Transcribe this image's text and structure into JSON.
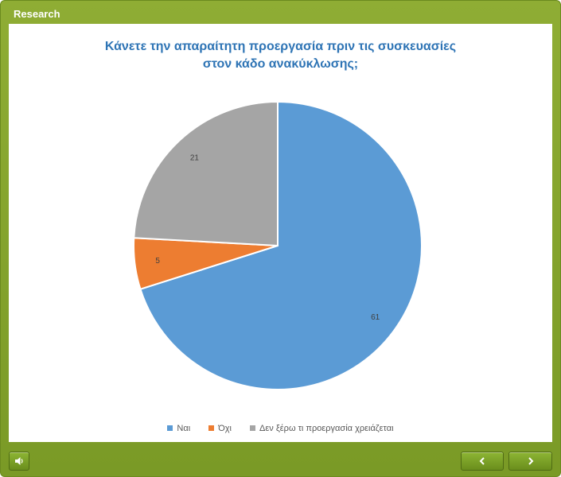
{
  "window": {
    "title": "Research"
  },
  "colors": {
    "frame": "#7a9a26",
    "title": "#2e74b5"
  },
  "chart_data": {
    "type": "pie",
    "title_lines": [
      "Κάνετε την απαραίτητη προεργασία πριν τις συσκευασίες",
      "στον κάδο ανακύκλωσης;"
    ],
    "categories": [
      "Ναι",
      "Όχι",
      "Δεν ξέρω τι προεργασία χρειάζεται"
    ],
    "values": [
      61,
      5,
      21
    ],
    "colors": [
      "#5b9bd5",
      "#ed7d31",
      "#a5a5a5"
    ],
    "data_labels": true,
    "legend_position": "bottom"
  },
  "footer": {
    "audio_icon": "speaker-icon",
    "prev_icon": "chevron-left-icon",
    "next_icon": "chevron-right-icon"
  }
}
